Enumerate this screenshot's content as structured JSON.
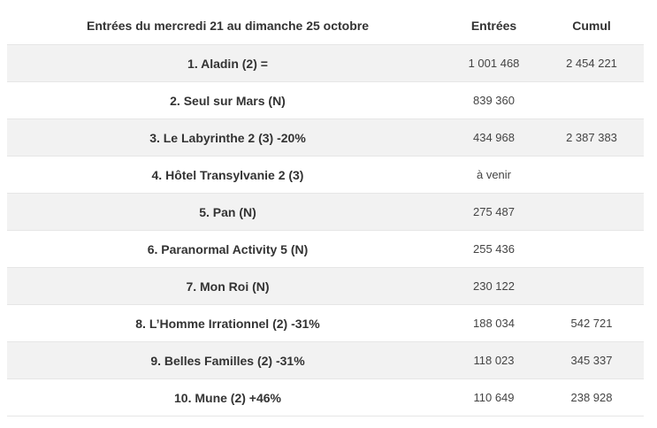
{
  "table": {
    "headers": [
      "Entrées du mercredi 21 au dimanche 25 octobre",
      "Entrées",
      "Cumul"
    ],
    "rows": [
      {
        "title": "1. Aladin (2) =",
        "entrees": "1 001 468",
        "cumul": "2 454 221"
      },
      {
        "title": "2. Seul sur Mars (N)",
        "entrees": "839 360",
        "cumul": ""
      },
      {
        "title": "3. Le Labyrinthe 2 (3) -20%",
        "entrees": "434 968",
        "cumul": "2 387 383"
      },
      {
        "title": "4. Hôtel Transylvanie  2 (3)",
        "entrees": "à venir",
        "cumul": ""
      },
      {
        "title": "5. Pan (N)",
        "entrees": "275 487",
        "cumul": ""
      },
      {
        "title": "6. Paranormal Activity 5 (N)",
        "entrees": "255 436",
        "cumul": ""
      },
      {
        "title": "7. Mon Roi (N)",
        "entrees": "230 122",
        "cumul": ""
      },
      {
        "title": "8. L’Homme Irrationnel (2) -31%",
        "entrees": "188 034",
        "cumul": "542 721"
      },
      {
        "title": "9. Belles Familles (2) -31%",
        "entrees": "118 023",
        "cumul": "345 337"
      },
      {
        "title": "10. Mune (2) +46%",
        "entrees": "110 649",
        "cumul": "238 928"
      }
    ]
  }
}
